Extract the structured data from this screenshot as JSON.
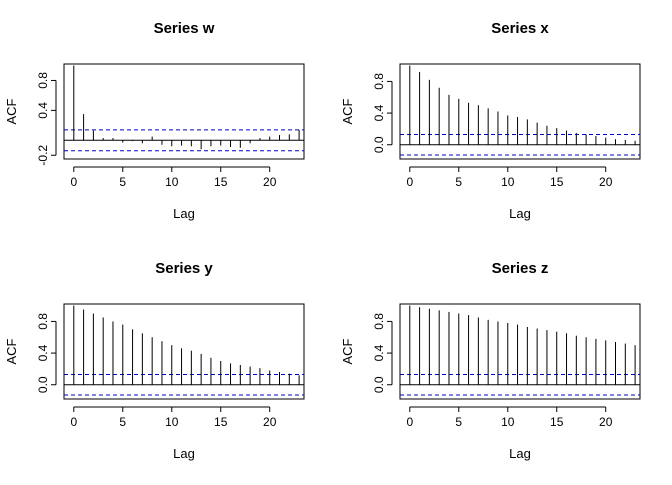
{
  "figure": {
    "background": "#ffffff",
    "conf_color": "#0000cc"
  },
  "chart_data": [
    {
      "type": "bar",
      "title": "Series  w",
      "xlabel": "Lag",
      "ylabel": "ACF",
      "xlim": [
        -1,
        23.5
      ],
      "ylim": [
        -0.25,
        1.02
      ],
      "xticks": [
        0,
        5,
        10,
        15,
        20
      ],
      "yticks": [
        -0.2,
        0.4,
        0.8
      ],
      "ytick_labels": [
        "-0.2",
        "0.4",
        "0.8"
      ],
      "conf_limit": 0.14,
      "x": [
        0,
        1,
        2,
        3,
        4,
        5,
        6,
        7,
        8,
        9,
        10,
        11,
        12,
        13,
        14,
        15,
        16,
        17,
        18,
        19,
        20,
        21,
        22,
        23
      ],
      "values": [
        1.0,
        0.35,
        0.13,
        0.03,
        0.03,
        -0.03,
        -0.01,
        -0.04,
        0.05,
        -0.06,
        -0.08,
        -0.07,
        -0.08,
        -0.12,
        -0.08,
        -0.07,
        -0.09,
        -0.1,
        -0.04,
        0.03,
        0.05,
        0.07,
        0.08,
        0.14
      ]
    },
    {
      "type": "bar",
      "title": "Series  x",
      "xlabel": "Lag",
      "ylabel": "ACF",
      "xlim": [
        -1,
        23.5
      ],
      "ylim": [
        -0.18,
        1.02
      ],
      "xticks": [
        0,
        5,
        10,
        15,
        20
      ],
      "yticks": [
        0.0,
        0.4,
        0.8
      ],
      "ytick_labels": [
        "0.0",
        "0.4",
        "0.8"
      ],
      "conf_limit": 0.13,
      "x": [
        0,
        1,
        2,
        3,
        4,
        5,
        6,
        7,
        8,
        9,
        10,
        11,
        12,
        13,
        14,
        15,
        16,
        17,
        18,
        19,
        20,
        21,
        22,
        23
      ],
      "values": [
        1.0,
        0.92,
        0.82,
        0.72,
        0.63,
        0.58,
        0.53,
        0.5,
        0.46,
        0.42,
        0.37,
        0.35,
        0.32,
        0.28,
        0.24,
        0.21,
        0.18,
        0.15,
        0.13,
        0.11,
        0.09,
        0.07,
        0.06,
        0.05
      ]
    },
    {
      "type": "bar",
      "title": "Series  y",
      "xlabel": "Lag",
      "ylabel": "ACF",
      "xlim": [
        -1,
        23.5
      ],
      "ylim": [
        -0.18,
        1.02
      ],
      "xticks": [
        0,
        5,
        10,
        15,
        20
      ],
      "yticks": [
        0.0,
        0.4,
        0.8
      ],
      "ytick_labels": [
        "0.0",
        "0.4",
        "0.8"
      ],
      "conf_limit": 0.13,
      "x": [
        0,
        1,
        2,
        3,
        4,
        5,
        6,
        7,
        8,
        9,
        10,
        11,
        12,
        13,
        14,
        15,
        16,
        17,
        18,
        19,
        20,
        21,
        22,
        23
      ],
      "values": [
        1.0,
        0.95,
        0.9,
        0.85,
        0.8,
        0.76,
        0.7,
        0.65,
        0.6,
        0.55,
        0.5,
        0.46,
        0.43,
        0.39,
        0.34,
        0.3,
        0.27,
        0.25,
        0.23,
        0.21,
        0.18,
        0.16,
        0.14,
        0.12
      ]
    },
    {
      "type": "bar",
      "title": "Series  z",
      "xlabel": "Lag",
      "ylabel": "ACF",
      "xlim": [
        -1,
        23.5
      ],
      "ylim": [
        -0.18,
        1.02
      ],
      "xticks": [
        0,
        5,
        10,
        15,
        20
      ],
      "yticks": [
        0.0,
        0.4,
        0.8
      ],
      "ytick_labels": [
        "0.0",
        "0.4",
        "0.8"
      ],
      "conf_limit": 0.13,
      "x": [
        0,
        1,
        2,
        3,
        4,
        5,
        6,
        7,
        8,
        9,
        10,
        11,
        12,
        13,
        14,
        15,
        16,
        17,
        18,
        19,
        20,
        21,
        22,
        23
      ],
      "values": [
        1.0,
        0.98,
        0.96,
        0.94,
        0.92,
        0.9,
        0.88,
        0.85,
        0.82,
        0.8,
        0.78,
        0.76,
        0.73,
        0.71,
        0.69,
        0.67,
        0.65,
        0.62,
        0.6,
        0.58,
        0.56,
        0.54,
        0.52,
        0.5
      ]
    }
  ]
}
